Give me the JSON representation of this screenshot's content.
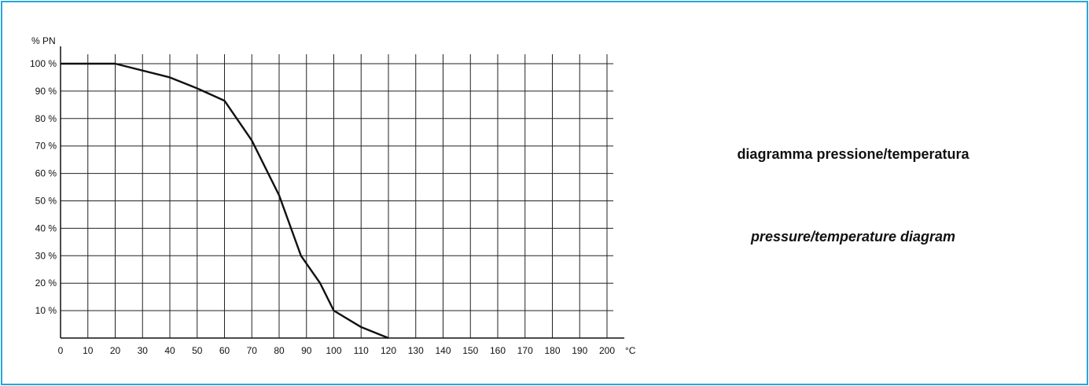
{
  "titles": {
    "italian": "diagramma pressione/temperatura",
    "english": "pressure/temperature diagram"
  },
  "colors": {
    "border": "#2aa6d9",
    "grid": "#222222",
    "line": "#111111"
  },
  "chart_data": {
    "type": "line",
    "title": "",
    "xlabel": "°C",
    "ylabel": "% PN",
    "xlim": [
      0,
      200
    ],
    "ylim": [
      0,
      100
    ],
    "x_ticks": [
      0,
      10,
      20,
      30,
      40,
      50,
      60,
      70,
      80,
      90,
      100,
      110,
      120,
      130,
      140,
      150,
      160,
      170,
      180,
      190,
      200
    ],
    "x_tick_labels": [
      "0",
      "10",
      "20",
      "30",
      "40",
      "50",
      "60",
      "70",
      "80",
      "90",
      "100",
      "110",
      "120",
      "130",
      "140",
      "150",
      "160",
      "170",
      "180",
      "190",
      "200"
    ],
    "y_ticks": [
      10,
      20,
      30,
      40,
      50,
      60,
      70,
      80,
      90,
      100
    ],
    "y_tick_labels": [
      "10 %",
      "20 %",
      "30 %",
      "40 %",
      "50 %",
      "60 %",
      "70 %",
      "80 %",
      "90 %",
      "100 %"
    ],
    "grid": true,
    "series": [
      {
        "x": [
          0,
          20,
          40,
          50,
          60,
          70,
          80,
          88,
          95,
          100,
          110,
          120
        ],
        "y": [
          100,
          100,
          95,
          91,
          86.5,
          72,
          52,
          30,
          20,
          10,
          4,
          0
        ]
      }
    ]
  }
}
